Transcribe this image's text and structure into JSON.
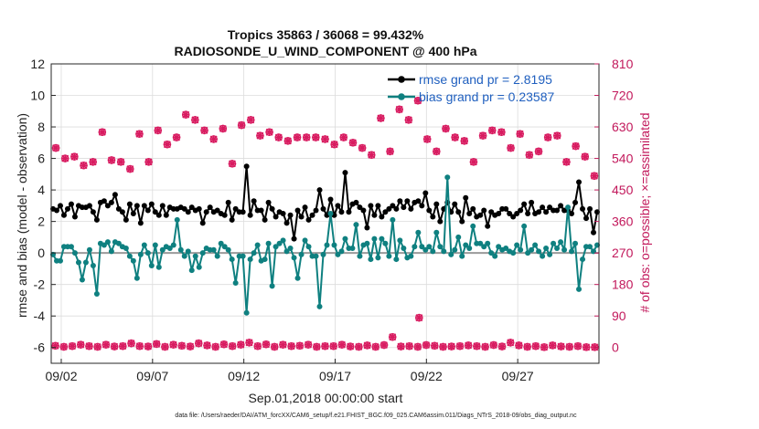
{
  "chart_data": {
    "type": "line",
    "title": "Tropics 35863 / 36068 = 99.432%",
    "subtitle": "RADIOSONDE_U_WIND_COMPONENT @ 400 hPa",
    "xlabel": "Sep.01,2018 00:00:00 start",
    "ylabel": "rmse and bias (model - observation)",
    "ylabel_right": "# of obs: o=possible; ×=assimilated",
    "x_range": [
      0.45,
      30.45
    ],
    "ylim": [
      -7,
      12
    ],
    "ylim_right": [
      -45,
      810
    ],
    "x_ticks": [
      {
        "x": 1,
        "label": "09/02"
      },
      {
        "x": 6,
        "label": "09/07"
      },
      {
        "x": 11,
        "label": "09/12"
      },
      {
        "x": 16,
        "label": "09/17"
      },
      {
        "x": 21,
        "label": "09/22"
      },
      {
        "x": 26,
        "label": "09/27"
      }
    ],
    "y_ticks": [
      "12",
      "10",
      "8",
      "6",
      "4",
      "2",
      "0",
      "-2",
      "-4",
      "-6"
    ],
    "y_tick_values": [
      12,
      10,
      8,
      6,
      4,
      2,
      0,
      -2,
      -4,
      -6
    ],
    "y_ticks_right": [
      "810",
      "720",
      "630",
      "540",
      "450",
      "360",
      "270",
      "180",
      "90",
      "0"
    ],
    "y_tick_values_right": [
      810,
      720,
      630,
      540,
      450,
      360,
      270,
      180,
      90,
      0
    ],
    "legend": [
      {
        "label": "rmse grand pr = 2.8195",
        "color": "#000000"
      },
      {
        "label": "bias grand pr = 0.23587",
        "color": "#0f8080"
      }
    ],
    "legend_position": "top-right",
    "series": [
      {
        "name": "rmse",
        "color": "#000000",
        "values": [
          2.8,
          2.7,
          3.0,
          2.4,
          2.8,
          3.1,
          2.3,
          3.0,
          2.9,
          2.9,
          3.0,
          2.6,
          2.1,
          3.2,
          3.3,
          3.0,
          3.2,
          3.7,
          2.8,
          2.6,
          2.1,
          3.1,
          2.5,
          3.0,
          1.9,
          3.0,
          2.7,
          3.1,
          2.6,
          2.4,
          3.0,
          2.4,
          2.9,
          2.8,
          2.8,
          2.9,
          2.8,
          2.6,
          2.9,
          2.7,
          2.8,
          1.9,
          2.6,
          2.9,
          2.6,
          2.7,
          2.5,
          2.4,
          3.2,
          2.1,
          2.8,
          2.6,
          2.6,
          5.5,
          2.4,
          3.3,
          2.7,
          2.7,
          2.1,
          3.2,
          2.8,
          2.3,
          2.6,
          2.5,
          1.9,
          2.4,
          0.9,
          2.7,
          2.3,
          2.9,
          2.1,
          2.4,
          2.7,
          4.0,
          2.8,
          2.4,
          3.4,
          2.4,
          3.0,
          2.6,
          5.1,
          2.6,
          3.1,
          3.2,
          2.9,
          2.7,
          1.6,
          3.0,
          2.4,
          3.0,
          2.3,
          2.6,
          2.8,
          3.0,
          2.8,
          3.3,
          2.9,
          3.3,
          2.8,
          3.2,
          3.3,
          3.0,
          3.8,
          2.7,
          2.3,
          3.1,
          2.0,
          2.8,
          3.2,
          2.6,
          3.1,
          2.6,
          2.0,
          3.5,
          2.5,
          2.8,
          2.3,
          2.4,
          2.7,
          1.7,
          2.6,
          2.4,
          2.5,
          2.8,
          2.8,
          2.5,
          2.3,
          2.5,
          2.7,
          3.1,
          2.5,
          3.2,
          2.5,
          2.6,
          2.9,
          2.6,
          2.9,
          2.7,
          2.7,
          3.0,
          2.7,
          2.7,
          2.5,
          3.2,
          4.5,
          2.8,
          2.2,
          2.8,
          1.3,
          2.6
        ]
      },
      {
        "name": "bias",
        "color": "#0f8080",
        "values": [
          -0.1,
          -0.5,
          -0.5,
          0.4,
          0.4,
          0.4,
          0.0,
          -0.6,
          -1.7,
          -0.6,
          0.2,
          -0.8,
          -2.6,
          0.6,
          0.5,
          0.7,
          0.1,
          0.7,
          0.6,
          0.4,
          0.3,
          -0.2,
          -0.5,
          -1.6,
          -0.1,
          0.5,
          0.0,
          -0.8,
          0.5,
          -0.9,
          0.2,
          0.4,
          0.3,
          0.5,
          2.1,
          0.2,
          -0.2,
          0.1,
          -1.1,
          -0.2,
          -0.9,
          0.0,
          0.3,
          0.2,
          0.2,
          -0.2,
          0.6,
          0.4,
          0.2,
          -0.4,
          -1.9,
          -0.2,
          -0.2,
          -3.8,
          -0.4,
          0.0,
          0.5,
          -0.5,
          -0.4,
          0.6,
          -2.1,
          0.4,
          0.6,
          0.8,
          0.1,
          0.3,
          -0.3,
          -1.6,
          -0.1,
          0.8,
          0.4,
          -0.2,
          -0.2,
          -3.4,
          -0.1,
          0.5,
          2.5,
          0.5,
          -0.1,
          0.1,
          0.9,
          0.3,
          0.3,
          1.8,
          -0.2,
          0.5,
          0.6,
          -0.4,
          0.9,
          -0.3,
          0.9,
          0.6,
          -0.2,
          2.1,
          -0.4,
          0.8,
          0.3,
          -0.3,
          -0.2,
          0.4,
          1.3,
          0.4,
          0.2,
          0.4,
          0.1,
          1.3,
          0.4,
          0.1,
          4.8,
          -0.1,
          0.2,
          1.0,
          -0.2,
          0.5,
          0.3,
          1.7,
          0.6,
          0.6,
          0.4,
          0.6,
          0.0,
          -0.2,
          0.4,
          0.2,
          0.3,
          0.1,
          0.0,
          0.5,
          0.2,
          1.7,
          0.0,
          0.2,
          0.5,
          0.1,
          -0.2,
          0.3,
          -0.1,
          0.6,
          0.3,
          0.7,
          0.2,
          2.9,
          0.1,
          0.6,
          -2.3,
          -0.4,
          0.4,
          0.4,
          0.1,
          0.5
        ]
      }
    ],
    "obs_possible_high": [
      570,
      540,
      545,
      520,
      530,
      615,
      535,
      530,
      510,
      610,
      530,
      620,
      580,
      600,
      665,
      650,
      620,
      595,
      625,
      525,
      635,
      650,
      605,
      615,
      600,
      590,
      600,
      600,
      600,
      595,
      580,
      600,
      585,
      570,
      550,
      655,
      560,
      680,
      650,
      705,
      595,
      560,
      625,
      600,
      590,
      530,
      605,
      620,
      615,
      570,
      610,
      550,
      560,
      600,
      605,
      530,
      575,
      545,
      490
    ],
    "obs_assimilated_high": [
      570,
      540,
      545,
      520,
      530,
      615,
      535,
      530,
      510,
      610,
      530,
      620,
      580,
      600,
      665,
      650,
      620,
      595,
      625,
      525,
      635,
      650,
      605,
      615,
      600,
      590,
      600,
      600,
      600,
      595,
      580,
      600,
      585,
      570,
      550,
      655,
      560,
      680,
      650,
      705,
      595,
      560,
      625,
      600,
      590,
      530,
      605,
      620,
      615,
      570,
      610,
      550,
      560,
      600,
      605,
      530,
      575,
      545,
      490
    ],
    "obs_possible_low": [
      5,
      2,
      4,
      8,
      4,
      2,
      8,
      3,
      4,
      12,
      4,
      3,
      10,
      2,
      8,
      5,
      3,
      12,
      6,
      2,
      9,
      4,
      8,
      14,
      4,
      9,
      2,
      8,
      4,
      5,
      8,
      2,
      4,
      4,
      8,
      3,
      2,
      6,
      2,
      7,
      30,
      3,
      4,
      2,
      7,
      5,
      2,
      3,
      4,
      6,
      4,
      2,
      7,
      3,
      14,
      6,
      2,
      4,
      1,
      6,
      3,
      2,
      4,
      1,
      1
    ],
    "obs_assimilated_low": [
      5,
      2,
      4,
      8,
      4,
      2,
      8,
      3,
      4,
      12,
      4,
      3,
      10,
      2,
      8,
      5,
      3,
      12,
      6,
      2,
      9,
      4,
      8,
      14,
      4,
      9,
      2,
      8,
      4,
      5,
      8,
      2,
      4,
      4,
      8,
      3,
      2,
      6,
      2,
      7,
      30,
      3,
      4,
      2,
      7,
      5,
      2,
      3,
      4,
      6,
      4,
      2,
      7,
      3,
      14,
      6,
      2,
      4,
      1,
      6,
      3,
      2,
      4,
      1,
      1
    ],
    "obs_outlier": {
      "x": 20.6,
      "value": 85
    },
    "footnote": "data file: /Users/raeder/DAI/ATM_forcXX/CAM6_setup/f.e21.FHIST_BGC.f09_025.CAM6assim.011/Diags_NTrS_2018-09/obs_diag_output.nc"
  }
}
